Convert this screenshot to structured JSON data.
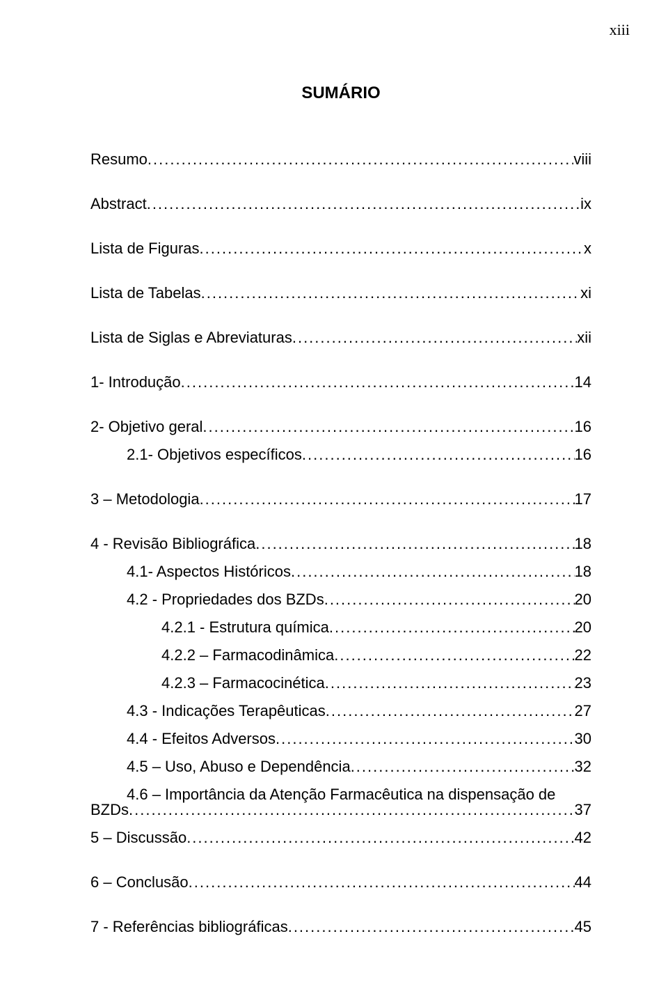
{
  "page_number_label": "xiii",
  "title": "SUMÁRIO",
  "typography": {
    "body_font": "Arial",
    "pagenum_font": "Times New Roman",
    "title_fontsize_pt": 18,
    "body_fontsize_pt": 16,
    "text_color": "#000000",
    "background_color": "#ffffff"
  },
  "entries": [
    {
      "label": "Resumo",
      "page": "viii",
      "indent": 0,
      "gap_after": true
    },
    {
      "label": "Abstract",
      "page": "ix",
      "indent": 0,
      "gap_after": true
    },
    {
      "label": "Lista de Figuras",
      "page": "x",
      "indent": 0,
      "gap_after": true
    },
    {
      "label": "Lista de Tabelas",
      "page": "xi",
      "indent": 0,
      "gap_after": true
    },
    {
      "label": "Lista de Siglas e Abreviaturas",
      "page": "xii",
      "indent": 0,
      "gap_after": true
    },
    {
      "label": "1- Introdução",
      "page": "14",
      "indent": 0,
      "gap_after": true
    },
    {
      "label": "2- Objetivo geral",
      "page": "16",
      "indent": 0,
      "gap_after": false
    },
    {
      "label": "2.1- Objetivos específicos",
      "page": "16",
      "indent": 1,
      "gap_after": true
    },
    {
      "label": "3 – Metodologia",
      "page": "17",
      "indent": 0,
      "gap_after": true
    },
    {
      "label": "4 - Revisão Bibliográfica",
      "page": "18",
      "indent": 0,
      "gap_after": false
    },
    {
      "label": "4.1- Aspectos Históricos",
      "page": "18",
      "indent": 1,
      "gap_after": false
    },
    {
      "label": "4.2 - Propriedades dos BZDs",
      "page": "20",
      "indent": 1,
      "gap_after": false
    },
    {
      "label": "4.2.1 - Estrutura química",
      "page": "20",
      "indent": 2,
      "gap_after": false
    },
    {
      "label": "4.2.2 – Farmacodinâmica",
      "page": "22",
      "indent": 2,
      "gap_after": false
    },
    {
      "label": "4.2.3 – Farmacocinética",
      "page": "23",
      "indent": 2,
      "gap_after": false
    },
    {
      "label": "4.3 - Indicações Terapêuticas",
      "page": "27",
      "indent": 1,
      "gap_after": false
    },
    {
      "label": "4.4 - Efeitos Adversos",
      "page": "30",
      "indent": 1,
      "gap_after": false
    },
    {
      "label": "4.5 – Uso, Abuso e Dependência",
      "page": "32",
      "indent": 1,
      "gap_after": false
    }
  ],
  "wrapped_entry": {
    "indent": 1,
    "line1_left": "4.6 – Importância da Atenção Farmacêutica na dispensação de",
    "line2_label": "BZDs",
    "page": "37"
  },
  "entries_after": [
    {
      "label": "5 – Discussão",
      "page": "42",
      "indent": 0,
      "gap_after": true
    },
    {
      "label": "6 – Conclusão",
      "page": "44",
      "indent": 0,
      "gap_after": true
    },
    {
      "label": "7 - Referências bibliográficas",
      "page": "45",
      "indent": 0,
      "gap_after": false
    }
  ]
}
